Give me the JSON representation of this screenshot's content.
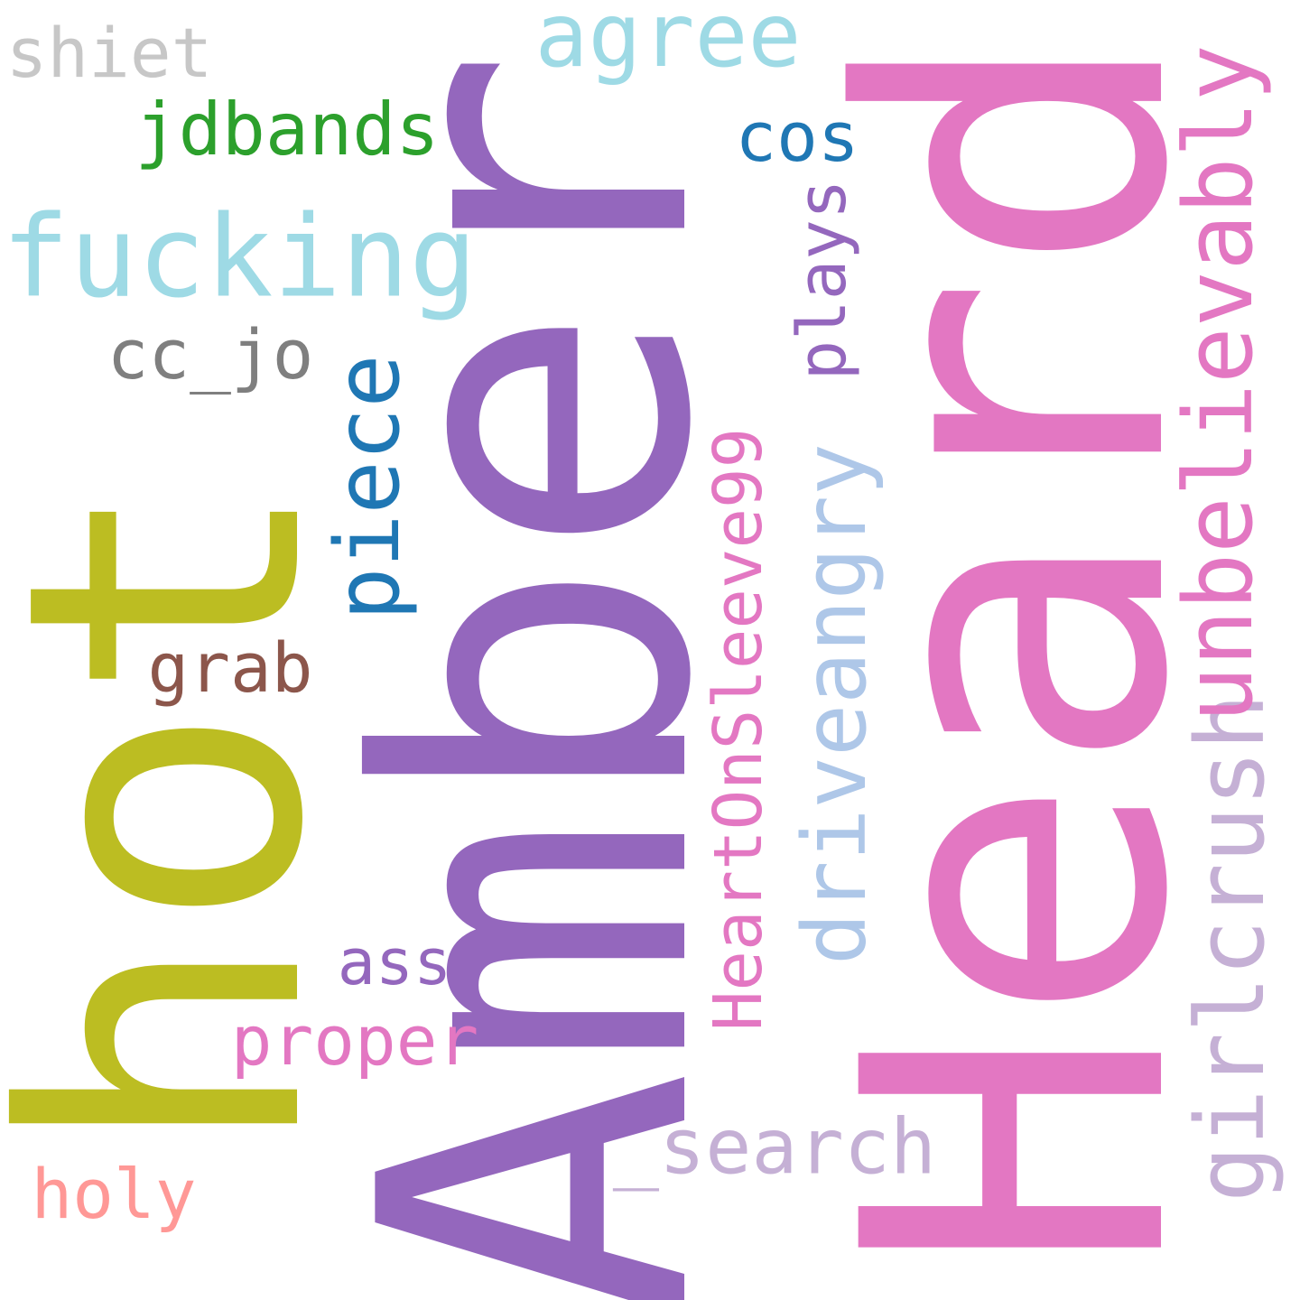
{
  "words": {
    "heard": {
      "text": "Heard",
      "color": "#e377c2"
    },
    "amber": {
      "text": "Amber",
      "color": "#9467bd"
    },
    "hot": {
      "text": "hot",
      "color": "#bcbd22"
    },
    "fucking": {
      "text": "fucking",
      "color": "#9edae5"
    },
    "girlcrush": {
      "text": "girlcrush",
      "color": "#c5b0d5"
    },
    "unbelievably": {
      "text": "unbelievably",
      "color": "#e377c2"
    },
    "piece": {
      "text": "piece",
      "color": "#1f77b4"
    },
    "driveangry": {
      "text": "driveangry",
      "color": "#aec7e8"
    },
    "heartonsleeve": {
      "text": "HeartOnSleeve99",
      "color": "#e377c2"
    },
    "agree": {
      "text": "agree",
      "color": "#9edae5"
    },
    "jdbands": {
      "text": "jdbands",
      "color": "#2ca02c"
    },
    "search": {
      "text": "_search",
      "color": "#c5b0d5"
    },
    "plays": {
      "text": "plays",
      "color": "#9467bd"
    },
    "cc_jo": {
      "text": "cc_jo",
      "color": "#7f7f7f"
    },
    "shiet": {
      "text": "shiet",
      "color": "#c7c7c7"
    },
    "proper": {
      "text": "proper",
      "color": "#e377c2"
    },
    "grab": {
      "text": "grab",
      "color": "#8c564b"
    },
    "cos": {
      "text": "cos",
      "color": "#1f77b4"
    },
    "holy": {
      "text": "holy",
      "color": "#ff9896"
    },
    "ass": {
      "text": "ass",
      "color": "#9467bd"
    }
  }
}
